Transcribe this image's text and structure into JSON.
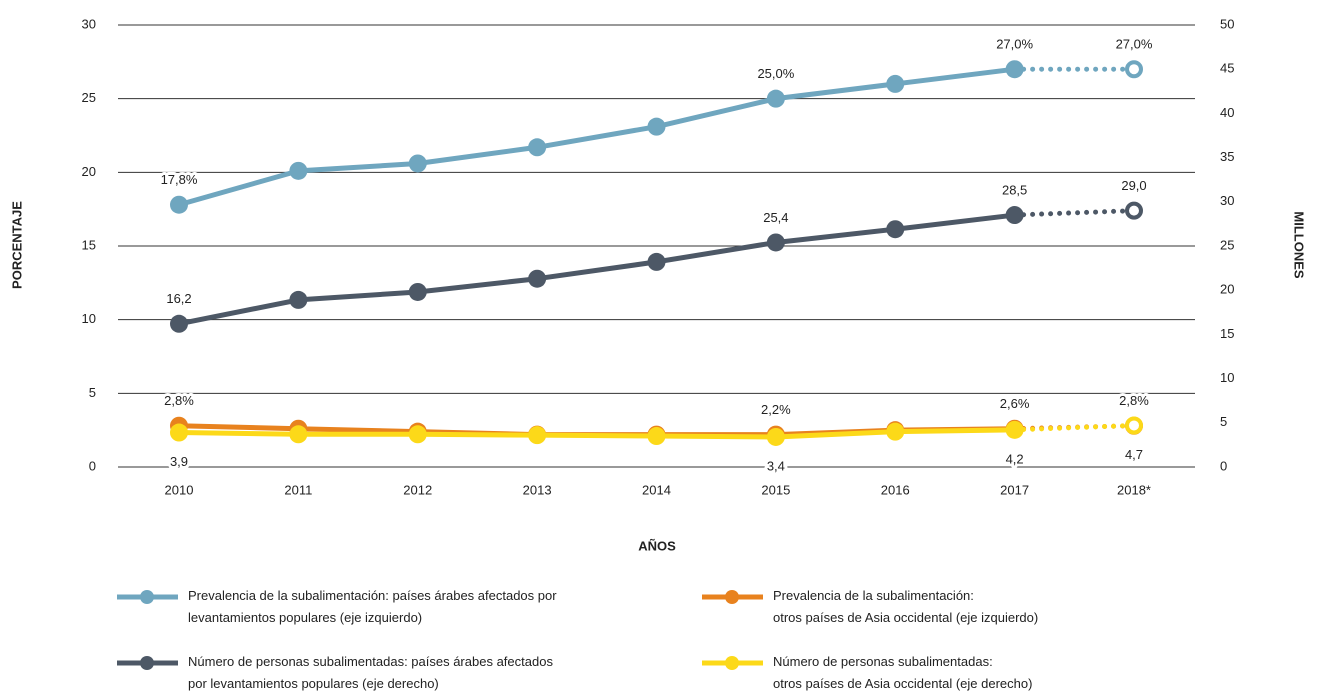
{
  "chart_data": {
    "type": "line",
    "x_label": "AÑOS",
    "y_label": "PORCENTAJE",
    "y2_label": "MILLONES",
    "categories": [
      "2010",
      "2011",
      "2012",
      "2013",
      "2014",
      "2015",
      "2016",
      "2017",
      "2018*"
    ],
    "ylim": [
      0,
      30
    ],
    "yticks": [
      0,
      5,
      10,
      15,
      20,
      25,
      30
    ],
    "y2lim": [
      0,
      50
    ],
    "y2ticks": [
      0,
      5,
      10,
      15,
      20,
      25,
      30,
      35,
      40,
      45,
      50
    ],
    "grid": true,
    "dotted_last_segment": true,
    "series": [
      {
        "name": "Prevalencia de la subalimentación: países árabes afectados por\nlevantamientos populares (eje izquierdo)",
        "color": "#6fa6bf",
        "axis": "y",
        "label_position": "above",
        "values": [
          17.8,
          20.1,
          20.6,
          21.7,
          23.1,
          25.0,
          26.0,
          27.0,
          27.0
        ],
        "value_labels": [
          "17,8%",
          null,
          null,
          null,
          null,
          "25,0%",
          null,
          "27,0%",
          "27,0%"
        ]
      },
      {
        "name": "Número de personas subalimentadas: países árabes afectados\npor levantamientos populares (eje derecho)",
        "color": "#4d5866",
        "axis": "y2",
        "label_position": "above",
        "values": [
          16.2,
          18.9,
          19.8,
          21.3,
          23.2,
          25.4,
          26.9,
          28.5,
          29.0
        ],
        "value_labels": [
          "16,2",
          null,
          null,
          null,
          null,
          "25,4",
          null,
          "28,5",
          "29,0"
        ]
      },
      {
        "name": "Prevalencia de la subalimentación:\notros países de Asia occidental (eje izquierdo)",
        "color": "#e8821e",
        "axis": "y",
        "label_position": "above",
        "values": [
          2.8,
          2.6,
          2.4,
          2.2,
          2.2,
          2.2,
          2.5,
          2.6,
          2.8
        ],
        "value_labels": [
          "2,8%",
          null,
          null,
          null,
          null,
          "2,2%",
          null,
          "2,6%",
          "2,8%"
        ]
      },
      {
        "name": "Número de personas subalimentadas:\notros países de Asia occidental (eje derecho)",
        "color": "#fcd919",
        "axis": "y2",
        "label_position": "below",
        "values": [
          3.9,
          3.7,
          3.7,
          3.6,
          3.5,
          3.4,
          4.0,
          4.2,
          4.7
        ],
        "value_labels": [
          "3,9",
          null,
          null,
          null,
          null,
          "3,4",
          null,
          "4,2",
          "4,7"
        ]
      }
    ]
  }
}
